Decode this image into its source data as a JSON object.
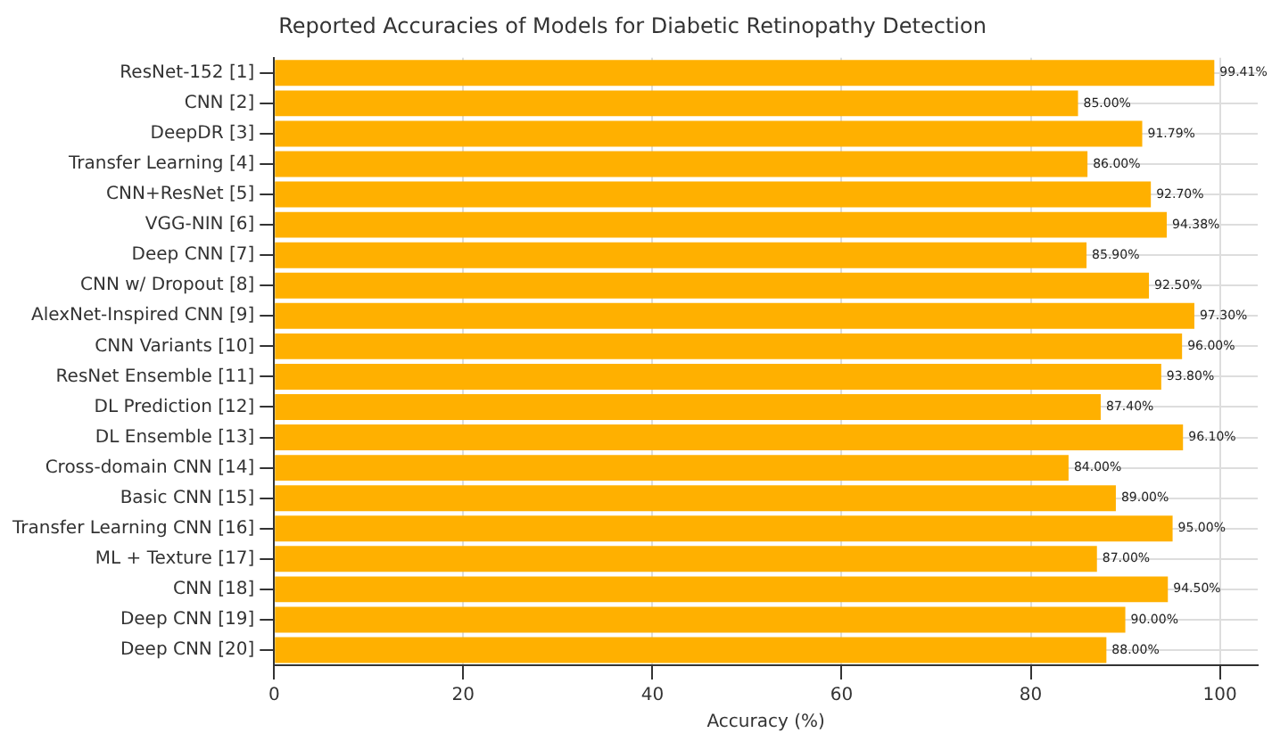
{
  "chart_data": {
    "type": "bar",
    "orientation": "horizontal",
    "title": "Reported Accuracies of Models for Diabetic Retinopathy Detection",
    "xlabel": "Accuracy (%)",
    "categories": [
      "ResNet-152 [1]",
      "CNN [2]",
      "DeepDR [3]",
      "Transfer Learning [4]",
      "CNN+ResNet [5]",
      "VGG-NIN [6]",
      "Deep CNN [7]",
      "CNN w/ Dropout [8]",
      "AlexNet-Inspired CNN [9]",
      "CNN Variants [10]",
      "ResNet Ensemble [11]",
      "DL Prediction [12]",
      "DL Ensemble [13]",
      "Cross-domain CNN [14]",
      "Basic CNN [15]",
      "Transfer Learning CNN [16]",
      "ML + Texture [17]",
      "CNN [18]",
      "Deep CNN [19]",
      "Deep CNN [20]"
    ],
    "values": [
      99.41,
      85.0,
      91.79,
      86.0,
      92.7,
      94.38,
      85.9,
      92.5,
      97.3,
      96.0,
      93.8,
      87.4,
      96.1,
      84.0,
      89.0,
      95.0,
      87.0,
      94.5,
      90.0,
      88.0
    ],
    "value_labels": [
      "99.41%",
      "85.00%",
      "91.79%",
      "86.00%",
      "92.70%",
      "94.38%",
      "85.90%",
      "92.50%",
      "97.30%",
      "96.00%",
      "93.80%",
      "87.40%",
      "96.10%",
      "84.00%",
      "89.00%",
      "95.00%",
      "87.00%",
      "94.50%",
      "90.00%",
      "88.00%"
    ],
    "color": "#ffb000",
    "xlim": [
      0,
      104
    ],
    "xticks": [
      0,
      20,
      40,
      60,
      80,
      100
    ],
    "grid": true
  }
}
